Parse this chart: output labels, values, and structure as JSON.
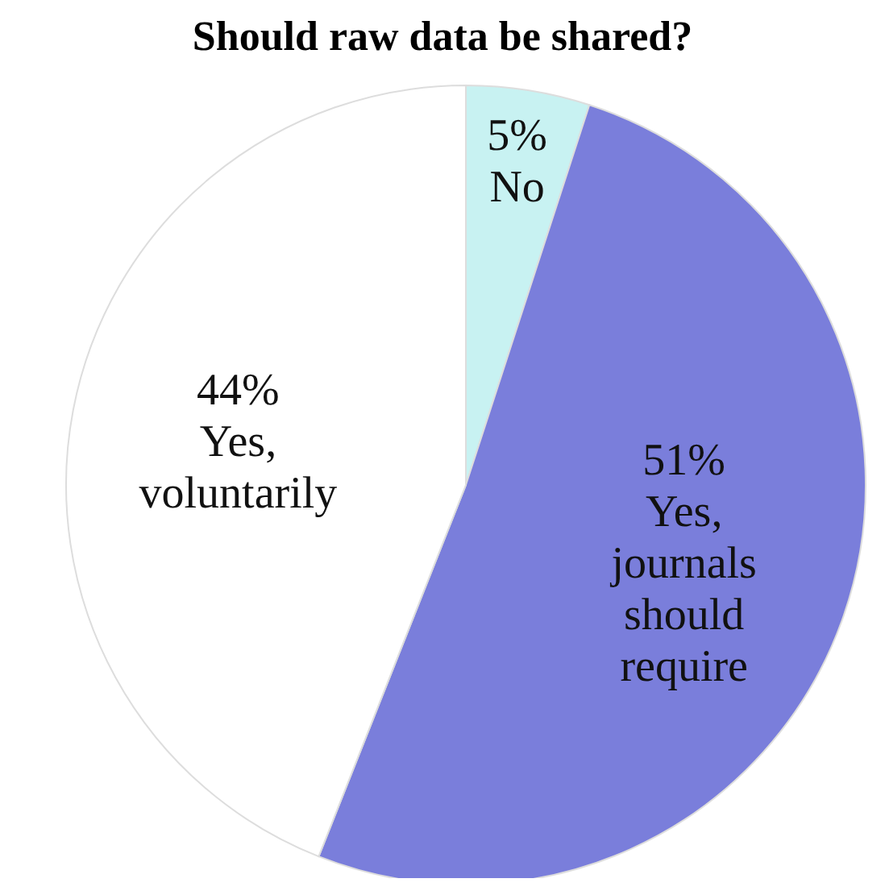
{
  "chart_data": {
    "type": "pie",
    "title": "Should raw data be shared?",
    "categories": [
      "No",
      "Yes, journals should require",
      "Yes, voluntarily"
    ],
    "values": [
      5,
      51,
      44
    ],
    "value_labels": [
      "5%",
      "51%",
      "44%"
    ],
    "colors": [
      "#c8f2f2",
      "#7a7edb",
      "#ffffff"
    ]
  }
}
